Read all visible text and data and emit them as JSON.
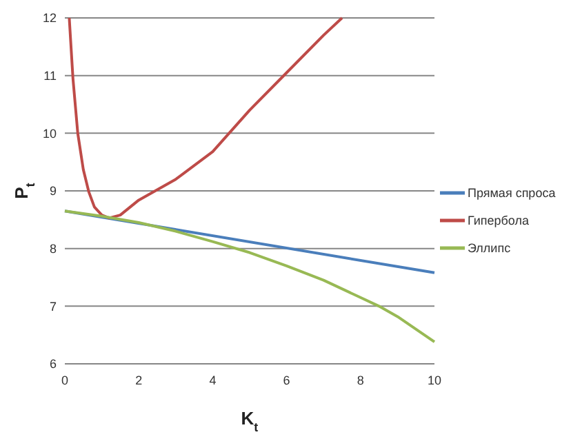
{
  "chart_data": {
    "type": "line",
    "xlabel": "K$_{t}$",
    "ylabel": "P$_{t}$",
    "xlim": [
      0,
      10
    ],
    "ylim": [
      6,
      12
    ],
    "xticks": [
      0,
      2,
      4,
      6,
      8,
      10
    ],
    "yticks": [
      6,
      7,
      8,
      9,
      10,
      11,
      12
    ],
    "grid": "y",
    "legend": "right",
    "marker": "none",
    "series": [
      {
        "name": "Прямая спроса",
        "color": "#4a7ebb",
        "x": [
          0,
          10
        ],
        "values": [
          8.65,
          7.58
        ]
      },
      {
        "name": "Гипербола",
        "color": "#be4b48",
        "x": [
          0.12,
          0.22,
          0.35,
          0.5,
          0.65,
          0.8,
          1,
          1.2,
          1.5,
          2,
          3,
          4,
          5,
          6,
          7,
          7.5
        ],
        "values": [
          12,
          10.95,
          10,
          9.37,
          8.98,
          8.72,
          8.58,
          8.53,
          8.58,
          8.84,
          9.2,
          9.68,
          10.4,
          11.05,
          11.7,
          12
        ]
      },
      {
        "name": "Эллипс",
        "color": "#98b954",
        "x": [
          0,
          1,
          2,
          3,
          4,
          5,
          6,
          7,
          8,
          8.5,
          9,
          10
        ],
        "values": [
          8.65,
          8.56,
          8.45,
          8.3,
          8.12,
          7.93,
          7.7,
          7.45,
          7.15,
          7,
          6.82,
          6.38
        ]
      }
    ]
  }
}
